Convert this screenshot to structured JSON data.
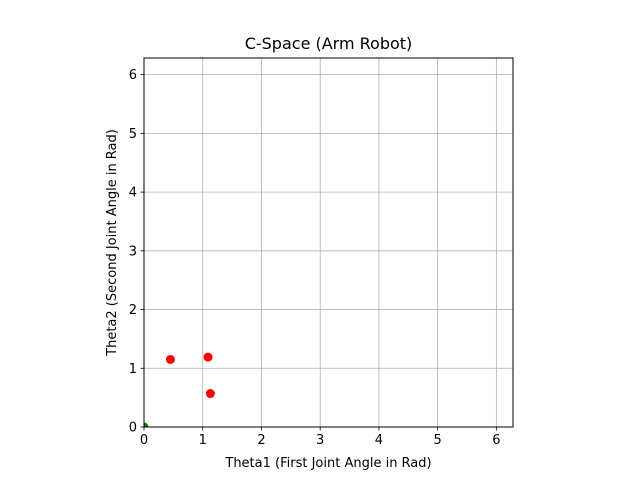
{
  "chart_data": {
    "type": "scatter",
    "title": "C-Space (Arm Robot)",
    "xlabel": "Theta1 (First Joint Angle in Rad)",
    "ylabel": "Theta2 (Second Joint Angle in Rad)",
    "xlim": [
      0,
      6.2832
    ],
    "ylim": [
      0,
      6.2832
    ],
    "xticks": [
      0,
      1,
      2,
      3,
      4,
      5,
      6
    ],
    "yticks": [
      0,
      1,
      2,
      3,
      4,
      5,
      6
    ],
    "grid": true,
    "series": [
      {
        "color": "#ff0000",
        "points": [
          {
            "x": 0.45,
            "y": 1.15
          },
          {
            "x": 1.09,
            "y": 1.19
          },
          {
            "x": 1.13,
            "y": 0.57
          }
        ]
      },
      {
        "color": "#008000",
        "points": [
          {
            "x": 0.0,
            "y": 0.0
          }
        ]
      }
    ]
  }
}
